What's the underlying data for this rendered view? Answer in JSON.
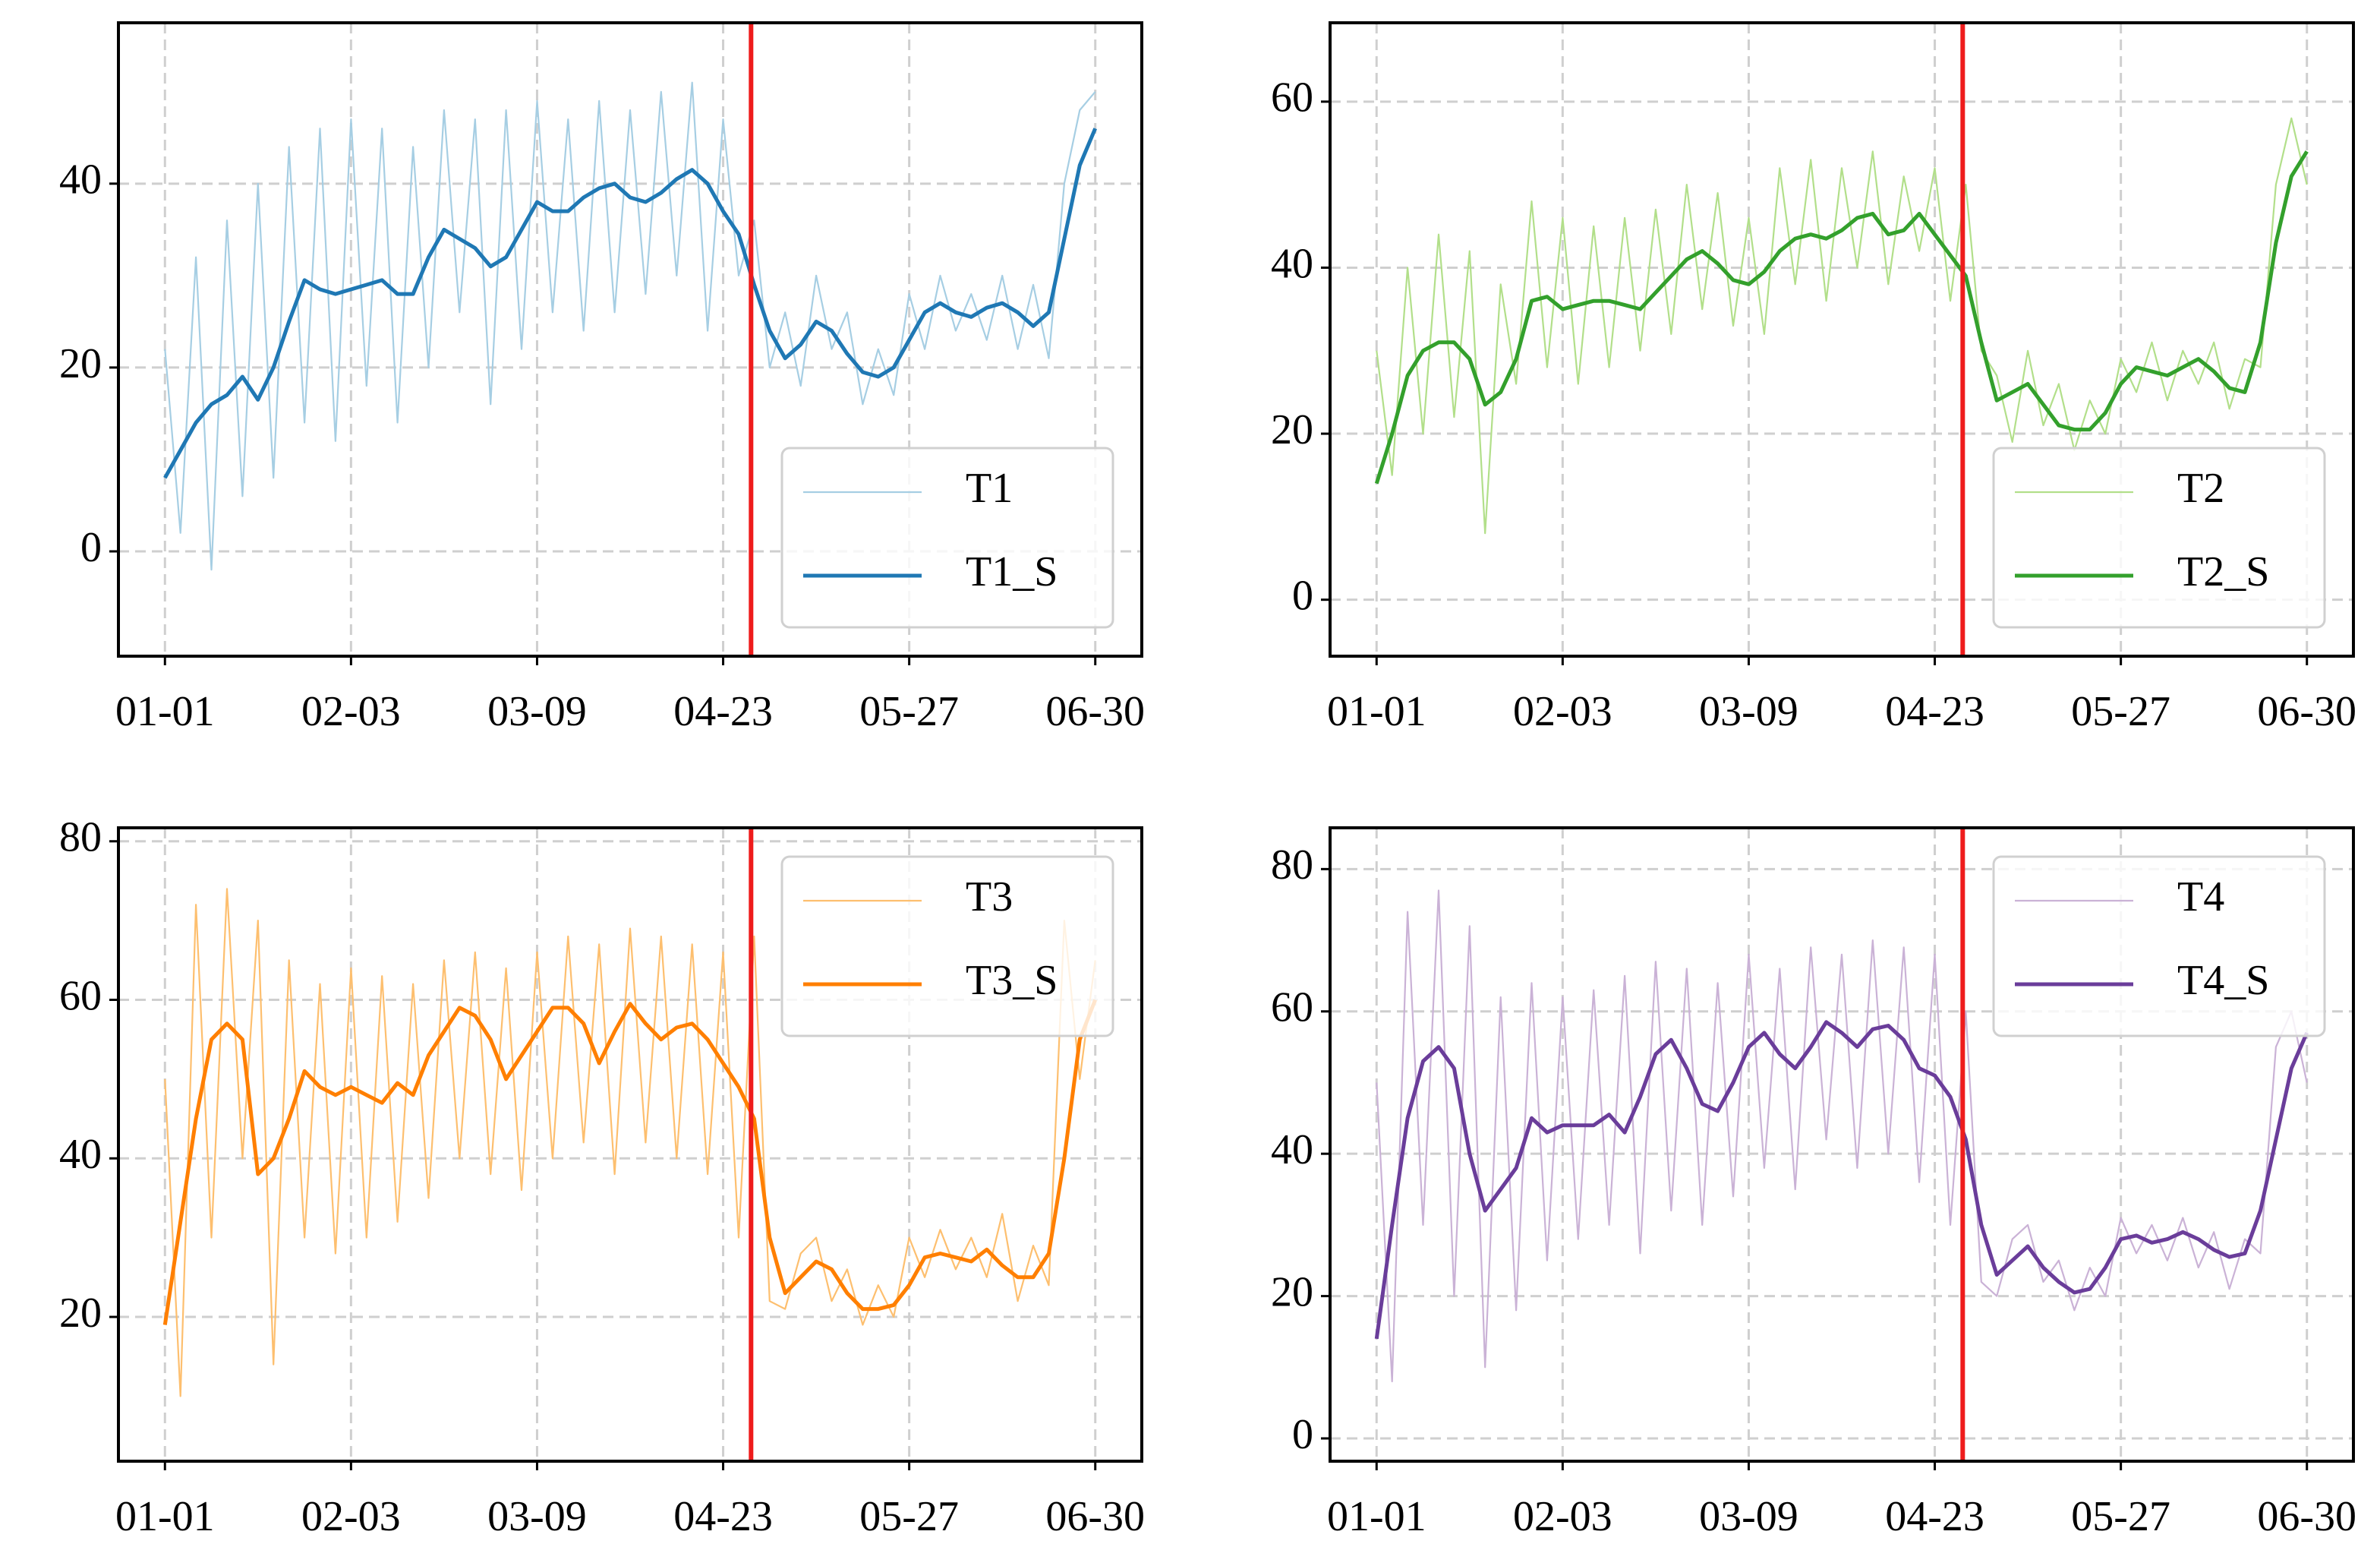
{
  "chart_data": [
    {
      "type": "line",
      "legend": "lower right",
      "categories": [
        "01-01",
        null,
        null,
        null,
        null,
        null,
        null,
        null,
        null,
        null,
        null,
        null,
        "02-03",
        null,
        null,
        null,
        null,
        null,
        null,
        null,
        null,
        null,
        null,
        null,
        "03-09",
        null,
        null,
        null,
        null,
        null,
        null,
        null,
        null,
        null,
        null,
        null,
        "04-23",
        null,
        null,
        null,
        null,
        null,
        null,
        null,
        null,
        null,
        null,
        null,
        "05-27",
        null,
        null,
        null,
        null,
        null,
        null,
        null,
        null,
        null,
        null,
        null,
        "06-30"
      ],
      "xlim": [
        -3,
        63
      ],
      "ylim": [
        -11.4,
        57.5
      ],
      "yticks": [
        0,
        20,
        40
      ],
      "grid": true,
      "vline": {
        "x": 37.8,
        "color": "#ee1c1c"
      },
      "series": [
        {
          "name": "T1",
          "color": "#a6cee3",
          "values": [
            22,
            2,
            32,
            -2,
            36,
            6,
            40,
            8,
            44,
            14,
            46,
            12,
            47,
            18,
            46,
            14,
            44,
            20,
            48,
            26,
            47,
            16,
            48,
            22,
            49,
            26,
            47,
            24,
            49,
            26,
            48,
            28,
            50,
            30,
            51,
            24,
            47,
            30,
            36,
            20,
            26,
            18,
            30,
            22,
            26,
            16,
            22,
            17,
            28,
            22,
            30,
            24,
            28,
            23,
            30,
            22,
            29,
            21,
            40,
            48,
            50
          ]
        },
        {
          "name": "T1_S",
          "color": "#1f78b4",
          "values": [
            8,
            11,
            14,
            16,
            17,
            19,
            16.5,
            20,
            25,
            29.5,
            28.5,
            28,
            28.5,
            29,
            29.5,
            28,
            28,
            32,
            35,
            34,
            33,
            31,
            32,
            35,
            38,
            37,
            37,
            38.5,
            39.5,
            40,
            38.5,
            38,
            39,
            40.5,
            41.5,
            40,
            37,
            34.5,
            29,
            24,
            21,
            22.5,
            25,
            24,
            21.5,
            19.5,
            19,
            20,
            23,
            26,
            27,
            26,
            25.5,
            26.5,
            27,
            26,
            24.5,
            26,
            34,
            42,
            46
          ]
        }
      ]
    },
    {
      "type": "line",
      "legend": "lower right",
      "categories": [
        "01-01",
        null,
        null,
        null,
        null,
        null,
        null,
        null,
        null,
        null,
        null,
        null,
        "02-03",
        null,
        null,
        null,
        null,
        null,
        null,
        null,
        null,
        null,
        null,
        null,
        "03-09",
        null,
        null,
        null,
        null,
        null,
        null,
        null,
        null,
        null,
        null,
        null,
        "04-23",
        null,
        null,
        null,
        null,
        null,
        null,
        null,
        null,
        null,
        null,
        null,
        "05-27",
        null,
        null,
        null,
        null,
        null,
        null,
        null,
        null,
        null,
        null,
        null,
        "06-30"
      ],
      "xlim": [
        -3,
        63
      ],
      "ylim": [
        -6.8,
        69.5
      ],
      "yticks": [
        0,
        20,
        40,
        60
      ],
      "grid": true,
      "vline": {
        "x": 37.8,
        "color": "#ee1c1c"
      },
      "series": [
        {
          "name": "T2",
          "color": "#b2df8a",
          "values": [
            30,
            15,
            40,
            20,
            44,
            22,
            42,
            8,
            38,
            26,
            48,
            28,
            46,
            26,
            45,
            28,
            46,
            30,
            47,
            32,
            50,
            35,
            49,
            33,
            46,
            32,
            52,
            38,
            53,
            36,
            52,
            40,
            54,
            38,
            51,
            42,
            52,
            36,
            50,
            30,
            27,
            19,
            30,
            21,
            26,
            18,
            24,
            20,
            29,
            25,
            31,
            24,
            30,
            26,
            31,
            23,
            29,
            28,
            50,
            58,
            50
          ]
        },
        {
          "name": "T2_S",
          "color": "#33a02c",
          "values": [
            14,
            20,
            27,
            30,
            31,
            31,
            29,
            23.5,
            25,
            29,
            36,
            36.5,
            35,
            35.5,
            36,
            36,
            35.5,
            35,
            37,
            39,
            41,
            42,
            40.5,
            38.5,
            38,
            39.5,
            42,
            43.5,
            44,
            43.5,
            44.5,
            46,
            46.5,
            44,
            44.5,
            46.5,
            44,
            41.5,
            39,
            31,
            24,
            25,
            26,
            23.5,
            21,
            20.5,
            20.5,
            22.5,
            26,
            28,
            27.5,
            27,
            28,
            29,
            27.5,
            25.5,
            25,
            31,
            43,
            51,
            54
          ]
        }
      ]
    },
    {
      "type": "line",
      "legend": "upper right",
      "categories": [
        "01-01",
        null,
        null,
        null,
        null,
        null,
        null,
        null,
        null,
        null,
        null,
        null,
        "02-03",
        null,
        null,
        null,
        null,
        null,
        null,
        null,
        null,
        null,
        null,
        null,
        "03-09",
        null,
        null,
        null,
        null,
        null,
        null,
        null,
        null,
        null,
        null,
        null,
        "04-23",
        null,
        null,
        null,
        null,
        null,
        null,
        null,
        null,
        null,
        null,
        null,
        "05-27",
        null,
        null,
        null,
        null,
        null,
        null,
        null,
        null,
        null,
        null,
        null,
        "06-30"
      ],
      "xlim": [
        -3,
        63
      ],
      "ylim": [
        1.8,
        81.7
      ],
      "yticks": [
        20,
        40,
        60,
        80
      ],
      "grid": true,
      "vline": {
        "x": 37.8,
        "color": "#ee1c1c"
      },
      "series": [
        {
          "name": "T3",
          "color": "#fdbf6f",
          "values": [
            50,
            10,
            72,
            30,
            74,
            40,
            70,
            14,
            65,
            30,
            62,
            28,
            64,
            30,
            63,
            32,
            62,
            35,
            65,
            40,
            66,
            38,
            64,
            36,
            66,
            40,
            68,
            42,
            67,
            38,
            69,
            42,
            68,
            40,
            67,
            38,
            66,
            30,
            68,
            22,
            21,
            28,
            30,
            22,
            26,
            19,
            24,
            20,
            30,
            25,
            31,
            26,
            30,
            25,
            33,
            22,
            29,
            24,
            70,
            50,
            65
          ]
        },
        {
          "name": "T3_S",
          "color": "#ff7f00",
          "values": [
            19,
            32,
            45,
            55,
            57,
            55,
            38,
            40,
            45,
            51,
            49,
            48,
            49,
            48,
            47,
            49.5,
            48,
            53,
            56,
            59,
            58,
            55,
            50,
            53,
            56,
            59,
            59,
            57,
            52,
            56,
            59.5,
            57,
            55,
            56.5,
            57,
            55,
            52,
            49,
            45,
            30,
            23,
            25,
            27,
            26,
            23,
            21,
            21,
            21.5,
            24,
            27.5,
            28,
            27.5,
            27,
            28.5,
            26.5,
            25,
            25,
            28,
            40,
            55,
            60
          ]
        }
      ]
    },
    {
      "type": "line",
      "legend": "upper right",
      "categories": [
        "01-01",
        null,
        null,
        null,
        null,
        null,
        null,
        null,
        null,
        null,
        null,
        null,
        "02-03",
        null,
        null,
        null,
        null,
        null,
        null,
        null,
        null,
        null,
        null,
        null,
        "03-09",
        null,
        null,
        null,
        null,
        null,
        null,
        null,
        null,
        null,
        null,
        null,
        "04-23",
        null,
        null,
        null,
        null,
        null,
        null,
        null,
        null,
        null,
        null,
        null,
        "05-27",
        null,
        null,
        null,
        null,
        null,
        null,
        null,
        null,
        null,
        null,
        null,
        "06-30"
      ],
      "xlim": [
        -3,
        63
      ],
      "ylim": [
        -3.2,
        85.8
      ],
      "yticks": [
        0,
        20,
        40,
        60,
        80
      ],
      "grid": true,
      "vline": {
        "x": 37.8,
        "color": "#ee1c1c"
      },
      "series": [
        {
          "name": "T4",
          "color": "#cab2d6",
          "values": [
            50,
            8,
            74,
            30,
            77,
            20,
            72,
            10,
            62,
            18,
            64,
            25,
            62,
            28,
            63,
            30,
            65,
            26,
            67,
            32,
            66,
            30,
            64,
            34,
            68,
            38,
            66,
            35,
            69,
            42,
            68,
            38,
            70,
            40,
            69,
            36,
            68,
            30,
            60,
            22,
            20,
            28,
            30,
            22,
            25,
            18,
            24,
            20,
            31,
            26,
            30,
            25,
            31,
            24,
            29,
            21,
            28,
            26,
            55,
            60,
            50
          ]
        },
        {
          "name": "T4_S",
          "color": "#6a3d9a",
          "values": [
            14,
            30,
            45,
            53,
            55,
            52,
            40,
            32,
            35,
            38,
            45,
            43,
            44,
            44,
            44,
            45.5,
            43,
            48,
            54,
            56,
            52,
            47,
            46,
            50,
            55,
            57,
            54,
            52,
            55,
            58.5,
            57,
            55,
            57.5,
            58,
            56,
            52,
            51,
            48,
            42,
            30,
            23,
            25,
            27,
            24,
            22,
            20.5,
            21,
            24,
            28,
            28.5,
            27.5,
            28,
            29,
            28,
            26.5,
            25.5,
            26,
            32,
            42,
            52,
            57
          ]
        }
      ]
    }
  ]
}
